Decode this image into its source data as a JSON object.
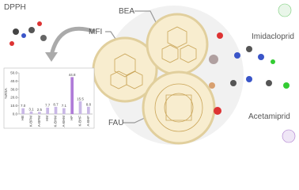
{
  "labels": {
    "dpph": "DPPH",
    "bea": "BEA",
    "mfi": "MFI",
    "fau": "FAU",
    "imidacloprid": "Imidacloprid",
    "acetamiprid": "Acetamiprid"
  },
  "chart_data": {
    "type": "bar",
    "y_label": "%RSA",
    "categories": [
      "HB",
      "K-BPM",
      "A-BPM",
      "HM",
      "K-BHM",
      "A-BHM",
      "HF",
      "K-BHF",
      "A-BHF"
    ],
    "values": [
      7.0,
      3.1,
      2.5,
      7.7,
      8.7,
      7.1,
      44.8,
      15.5,
      8.8
    ],
    "value_labels": [
      "7.0",
      "3.1",
      "2.5",
      "7.7",
      "8.7",
      "7.1",
      "44.8",
      "15.5",
      "8.8"
    ],
    "colors": [
      "#c9b8e6",
      "#c9b8e6",
      "#c9b8e6",
      "#c9b8e6",
      "#c9b8e6",
      "#c9b8e6",
      "#b07cd8",
      "#c9b8e6",
      "#c9b8e6"
    ],
    "ylim": [
      0,
      50
    ],
    "yticks": [
      {
        "value": 0,
        "label": "0.0"
      },
      {
        "value": 10,
        "label": "10.0"
      },
      {
        "value": 20,
        "label": "20.0"
      },
      {
        "value": 30,
        "label": "30.0"
      },
      {
        "value": 40,
        "label": "40.0"
      },
      {
        "value": 50,
        "label": "50.0"
      }
    ],
    "grid": false
  }
}
